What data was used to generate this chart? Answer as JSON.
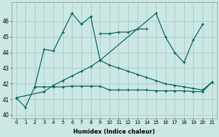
{
  "xlabel": "Humidex (Indice chaleur)",
  "bg_color": "#cce8e4",
  "grid_color": "#aacccc",
  "line_color": "#006060",
  "ylim": [
    39.8,
    47.2
  ],
  "yticks": [
    40,
    41,
    42,
    43,
    44,
    45,
    46
  ],
  "xlim": [
    -0.5,
    21.5
  ],
  "xticks": [
    0,
    1,
    2,
    3,
    4,
    5,
    6,
    7,
    8,
    9,
    10,
    11,
    12,
    13,
    14,
    15,
    16,
    17,
    18,
    19,
    20,
    21
  ],
  "line1_x": [
    0,
    1,
    2,
    3,
    4,
    5,
    6,
    7,
    8,
    9,
    15,
    16,
    17,
    18,
    19,
    20
  ],
  "line1_y": [
    41.1,
    40.5,
    41.8,
    44.2,
    44.1,
    45.3,
    46.5,
    45.8,
    46.3,
    43.5,
    46.5,
    45.0,
    44.0,
    43.35,
    44.8,
    45.8
  ],
  "line2_x": [
    9,
    10,
    11,
    12,
    13,
    14
  ],
  "line2_y": [
    45.2,
    45.2,
    45.3,
    45.3,
    45.5,
    45.5
  ],
  "line3_x": [
    0,
    3,
    4,
    5,
    6,
    7,
    8,
    9,
    10,
    11,
    12,
    13,
    14,
    15,
    16,
    17,
    18,
    19,
    20,
    21
  ],
  "line3_y": [
    41.1,
    41.5,
    41.9,
    42.2,
    42.5,
    42.8,
    43.1,
    43.5,
    43.2,
    43.0,
    42.8,
    42.6,
    42.4,
    42.2,
    42.0,
    41.9,
    41.8,
    41.7,
    41.6,
    42.1
  ],
  "line4_x": [
    2,
    3,
    4,
    5,
    6,
    7,
    8,
    9,
    10,
    11,
    12,
    13,
    14,
    15,
    16,
    17,
    18,
    19,
    20,
    21
  ],
  "line4_y": [
    41.8,
    41.8,
    41.8,
    41.8,
    41.85,
    41.85,
    41.85,
    41.85,
    41.6,
    41.6,
    41.6,
    41.6,
    41.6,
    41.55,
    41.55,
    41.55,
    41.55,
    41.5,
    41.5,
    42.1
  ]
}
